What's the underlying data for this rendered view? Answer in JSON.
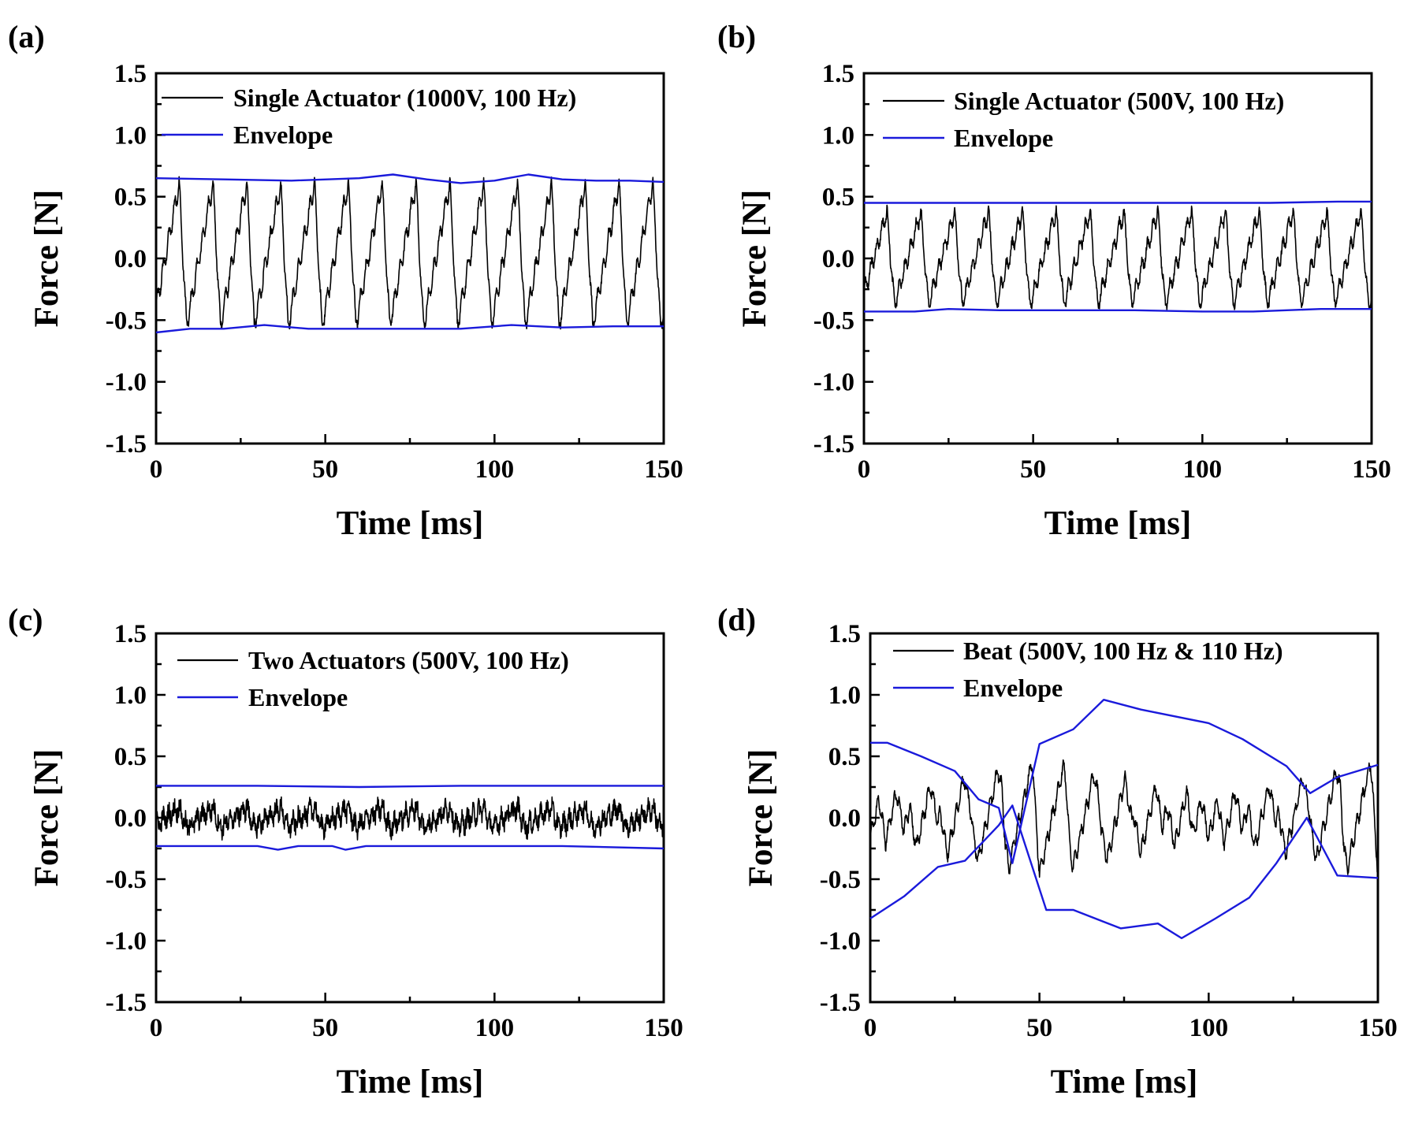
{
  "chart_data": [
    {
      "type": "line",
      "panel_label": "(a)",
      "xlabel": "Time [ms]",
      "ylabel": "Force [N]",
      "xlim": [
        0,
        150
      ],
      "ylim": [
        -1.5,
        1.5
      ],
      "x_ticks": [
        "0",
        "50",
        "100",
        "150"
      ],
      "y_ticks": [
        "1.5",
        "1.0",
        "0.5",
        "0.0",
        "-0.5",
        "-1.0",
        "-1.5"
      ],
      "legend_position": "top-left",
      "series": [
        {
          "name": "Single Actuator (1000V, 100 Hz)",
          "color": "#000000",
          "signal": {
            "freqs_hz": [
              100
            ],
            "amplitude_n": 0.58,
            "offset_n": 0.03,
            "fine_ripple_n": 0.07,
            "noise_n": 0.03
          }
        },
        {
          "name": "Envelope",
          "color": "#1a1adb",
          "upper": {
            "x": [
              0,
              20,
              40,
              60,
              70,
              80,
              90,
              100,
              110,
              120,
              130,
              140,
              150
            ],
            "y": [
              0.65,
              0.64,
              0.63,
              0.65,
              0.68,
              0.64,
              0.61,
              0.63,
              0.68,
              0.64,
              0.63,
              0.63,
              0.62
            ]
          },
          "lower": {
            "x": [
              0,
              10,
              20,
              32,
              45,
              60,
              75,
              90,
              105,
              120,
              135,
              150
            ],
            "y": [
              -0.6,
              -0.57,
              -0.57,
              -0.54,
              -0.57,
              -0.57,
              -0.57,
              -0.57,
              -0.54,
              -0.56,
              -0.55,
              -0.55
            ]
          }
        }
      ]
    },
    {
      "type": "line",
      "panel_label": "(b)",
      "xlabel": "Time [ms]",
      "ylabel": "Force [N]",
      "xlim": [
        0,
        150
      ],
      "ylim": [
        -1.5,
        1.5
      ],
      "x_ticks": [
        "0",
        "50",
        "100",
        "150"
      ],
      "y_ticks": [
        "1.5",
        "1.0",
        "0.5",
        "0.0",
        "-0.5",
        "-1.0",
        "-1.5"
      ],
      "legend_position": "top-left",
      "series": [
        {
          "name": "Single Actuator (500V, 100 Hz)",
          "color": "#000000",
          "signal": {
            "freqs_hz": [
              100
            ],
            "amplitude_n": 0.38,
            "offset_n": 0.0,
            "fine_ripple_n": 0.06,
            "noise_n": 0.03
          }
        },
        {
          "name": "Envelope",
          "color": "#1a1adb",
          "upper": {
            "x": [
              0,
              30,
              60,
              90,
              120,
              140,
              150
            ],
            "y": [
              0.45,
              0.45,
              0.45,
              0.45,
              0.45,
              0.46,
              0.46
            ]
          },
          "lower": {
            "x": [
              0,
              15,
              25,
              40,
              60,
              80,
              100,
              115,
              135,
              150
            ],
            "y": [
              -0.43,
              -0.43,
              -0.41,
              -0.42,
              -0.42,
              -0.42,
              -0.43,
              -0.43,
              -0.41,
              -0.41
            ]
          }
        }
      ]
    },
    {
      "type": "line",
      "panel_label": "(c)",
      "xlabel": "Time [ms]",
      "ylabel": "Force [N]",
      "xlim": [
        0,
        150
      ],
      "ylim": [
        -1.5,
        1.5
      ],
      "x_ticks": [
        "0",
        "50",
        "100",
        "150"
      ],
      "y_ticks": [
        "1.5",
        "1.0",
        "0.5",
        "0.0",
        "-0.5",
        "-1.0",
        "-1.5"
      ],
      "legend_position": "top-left",
      "series": [
        {
          "name": "Two Actuators (500V, 100 Hz)",
          "color": "#000000",
          "signal": {
            "freqs_hz": [
              100
            ],
            "amplitude_n": 0.08,
            "offset_n": 0.0,
            "fine_ripple_n": 0.05,
            "noise_n": 0.07
          }
        },
        {
          "name": "Envelope",
          "color": "#1a1adb",
          "upper": {
            "x": [
              0,
              30,
              60,
              90,
              120,
              150
            ],
            "y": [
              0.26,
              0.26,
              0.25,
              0.26,
              0.26,
              0.26
            ]
          },
          "lower": {
            "x": [
              0,
              30,
              36,
              42,
              52,
              56,
              62,
              90,
              120,
              150
            ],
            "y": [
              -0.23,
              -0.23,
              -0.26,
              -0.23,
              -0.23,
              -0.26,
              -0.23,
              -0.23,
              -0.23,
              -0.25
            ]
          }
        }
      ]
    },
    {
      "type": "line",
      "panel_label": "(d)",
      "xlabel": "Time [ms]",
      "ylabel": "Force [N]",
      "xlim": [
        0,
        150
      ],
      "ylim": [
        -1.5,
        1.5
      ],
      "x_ticks": [
        "0",
        "50",
        "100",
        "150"
      ],
      "y_ticks": [
        "1.5",
        "1.0",
        "0.5",
        "0.0",
        "-0.5",
        "-1.0",
        "-1.5"
      ],
      "legend_position": "top-left",
      "series": [
        {
          "name": "Beat (500V, 100 Hz & 110 Hz)",
          "color": "#000000",
          "signal": {
            "freqs_hz": [
              100,
              110
            ],
            "amplitude_n": 0.46,
            "offset_n": 0.0,
            "fine_ripple_n": 0.06,
            "noise_n": 0.03
          }
        },
        {
          "name": "Envelope",
          "color": "#1a1adb",
          "upper": {
            "x": [
              0,
              5,
              15,
              25,
              32,
              38,
              42,
              50,
              60,
              69,
              80,
              100,
              110,
              123,
              130,
              138,
              150
            ],
            "y": [
              0.61,
              0.61,
              0.5,
              0.38,
              0.15,
              0.08,
              -0.37,
              0.6,
              0.72,
              0.96,
              0.88,
              0.77,
              0.64,
              0.42,
              0.2,
              0.33,
              0.43
            ]
          },
          "lower": {
            "x": [
              0,
              10,
              20,
              28,
              38,
              42,
              52,
              60,
              74,
              85,
              92,
              102,
              112,
              120,
              129,
              138,
              150
            ],
            "y": [
              -0.82,
              -0.64,
              -0.4,
              -0.35,
              -0.06,
              0.1,
              -0.75,
              -0.75,
              -0.9,
              -0.86,
              -0.98,
              -0.82,
              -0.65,
              -0.37,
              0.0,
              -0.47,
              -0.49
            ]
          }
        }
      ]
    }
  ]
}
